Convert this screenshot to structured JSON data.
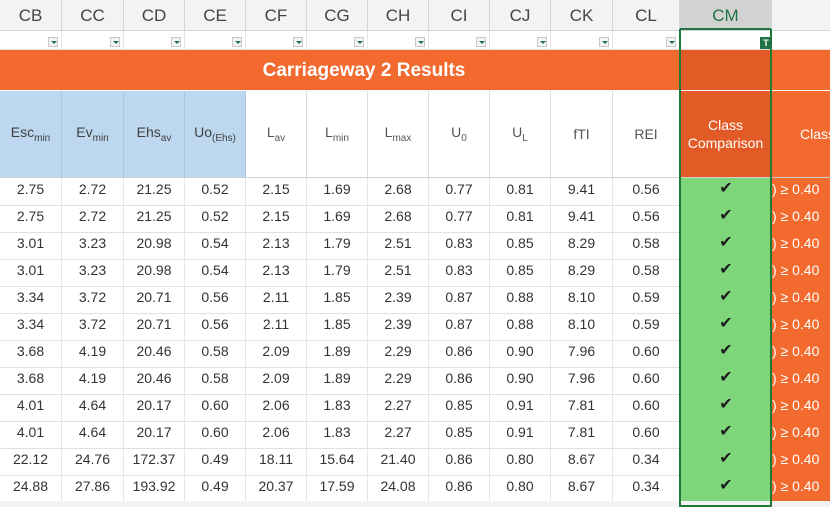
{
  "columns": [
    "CB",
    "CC",
    "CD",
    "CE",
    "CF",
    "CG",
    "CH",
    "CI",
    "CJ",
    "CK",
    "CL",
    "CM"
  ],
  "selected_column": "CM",
  "title": "Carriageway 2 Results",
  "headers": {
    "esc_base": "Esc",
    "esc_sub": "min",
    "ev_base": "Ev",
    "ev_sub": "min",
    "ehs_base": "Ehs",
    "ehs_sub": "av",
    "uo_base": "Uo",
    "uo_sub": "(Ehs)",
    "lav_base": "L",
    "lav_sub": "av",
    "lmin_base": "L",
    "lmin_sub": "min",
    "lmax_base": "L",
    "lmax_sub": "max",
    "u0_base": "U",
    "u0_sub": "0",
    "ul_base": "U",
    "ul_sub": "L",
    "fti": "fTI",
    "rei": "REI",
    "class_comparison_line1": "Class",
    "class_comparison_line2": "Comparison",
    "class_partial": "Class"
  },
  "rows": [
    {
      "esc": "2.75",
      "ev": "2.72",
      "ehs": "21.25",
      "uo": "0.52",
      "lav": "2.15",
      "lmin": "1.69",
      "lmax": "2.68",
      "u0": "0.77",
      "ul": "0.81",
      "fti": "9.41",
      "rei": "0.56",
      "cm": "✔",
      "right": ") ≥  0.40"
    },
    {
      "esc": "2.75",
      "ev": "2.72",
      "ehs": "21.25",
      "uo": "0.52",
      "lav": "2.15",
      "lmin": "1.69",
      "lmax": "2.68",
      "u0": "0.77",
      "ul": "0.81",
      "fti": "9.41",
      "rei": "0.56",
      "cm": "✔",
      "right": ") ≥  0.40"
    },
    {
      "esc": "3.01",
      "ev": "3.23",
      "ehs": "20.98",
      "uo": "0.54",
      "lav": "2.13",
      "lmin": "1.79",
      "lmax": "2.51",
      "u0": "0.83",
      "ul": "0.85",
      "fti": "8.29",
      "rei": "0.58",
      "cm": "✔",
      "right": ") ≥  0.40"
    },
    {
      "esc": "3.01",
      "ev": "3.23",
      "ehs": "20.98",
      "uo": "0.54",
      "lav": "2.13",
      "lmin": "1.79",
      "lmax": "2.51",
      "u0": "0.83",
      "ul": "0.85",
      "fti": "8.29",
      "rei": "0.58",
      "cm": "✔",
      "right": ") ≥  0.40"
    },
    {
      "esc": "3.34",
      "ev": "3.72",
      "ehs": "20.71",
      "uo": "0.56",
      "lav": "2.11",
      "lmin": "1.85",
      "lmax": "2.39",
      "u0": "0.87",
      "ul": "0.88",
      "fti": "8.10",
      "rei": "0.59",
      "cm": "✔",
      "right": ") ≥  0.40"
    },
    {
      "esc": "3.34",
      "ev": "3.72",
      "ehs": "20.71",
      "uo": "0.56",
      "lav": "2.11",
      "lmin": "1.85",
      "lmax": "2.39",
      "u0": "0.87",
      "ul": "0.88",
      "fti": "8.10",
      "rei": "0.59",
      "cm": "✔",
      "right": ") ≥  0.40"
    },
    {
      "esc": "3.68",
      "ev": "4.19",
      "ehs": "20.46",
      "uo": "0.58",
      "lav": "2.09",
      "lmin": "1.89",
      "lmax": "2.29",
      "u0": "0.86",
      "ul": "0.90",
      "fti": "7.96",
      "rei": "0.60",
      "cm": "✔",
      "right": ") ≥  0.40"
    },
    {
      "esc": "3.68",
      "ev": "4.19",
      "ehs": "20.46",
      "uo": "0.58",
      "lav": "2.09",
      "lmin": "1.89",
      "lmax": "2.29",
      "u0": "0.86",
      "ul": "0.90",
      "fti": "7.96",
      "rei": "0.60",
      "cm": "✔",
      "right": ") ≥  0.40"
    },
    {
      "esc": "4.01",
      "ev": "4.64",
      "ehs": "20.17",
      "uo": "0.60",
      "lav": "2.06",
      "lmin": "1.83",
      "lmax": "2.27",
      "u0": "0.85",
      "ul": "0.91",
      "fti": "7.81",
      "rei": "0.60",
      "cm": "✔",
      "right": ") ≥  0.40"
    },
    {
      "esc": "4.01",
      "ev": "4.64",
      "ehs": "20.17",
      "uo": "0.60",
      "lav": "2.06",
      "lmin": "1.83",
      "lmax": "2.27",
      "u0": "0.85",
      "ul": "0.91",
      "fti": "7.81",
      "rei": "0.60",
      "cm": "✔",
      "right": ") ≥  0.40"
    },
    {
      "esc": "22.12",
      "ev": "24.76",
      "ehs": "172.37",
      "uo": "0.49",
      "lav": "18.11",
      "lmin": "15.64",
      "lmax": "21.40",
      "u0": "0.86",
      "ul": "0.80",
      "fti": "8.67",
      "rei": "0.34",
      "cm": "✔",
      "right": ") ≥  0.40"
    },
    {
      "esc": "24.88",
      "ev": "27.86",
      "ehs": "193.92",
      "uo": "0.49",
      "lav": "20.37",
      "lmin": "17.59",
      "lmax": "24.08",
      "u0": "0.86",
      "ul": "0.80",
      "fti": "8.67",
      "rei": "0.34",
      "cm": "✔",
      "right": ") ≥  0.40"
    }
  ],
  "colors": {
    "orange": "#f26a2e",
    "orange_dark": "#e25b26",
    "blue_header": "#bcd7ee",
    "green_pass": "#7fd67a",
    "excel_green": "#217346"
  },
  "icons": {
    "filter": "filter-dropdown-icon",
    "check": "checkmark-icon",
    "table_tag": "table-tag-icon"
  }
}
